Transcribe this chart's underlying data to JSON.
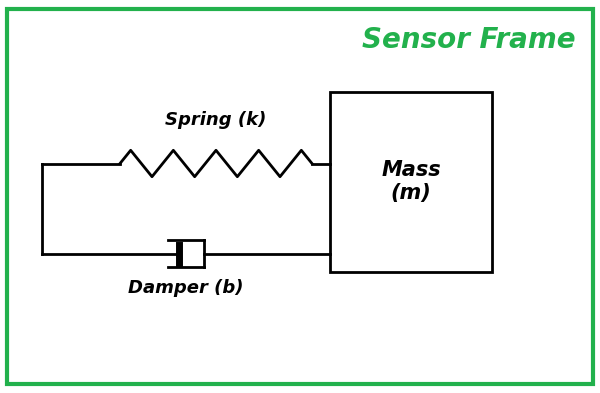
{
  "title": "Sensor Frame",
  "title_color": "#22b14c",
  "title_fontsize": 20,
  "background_color": "#ffffff",
  "border_color": "#22b14c",
  "border_linewidth": 3,
  "spring_label": "Spring (k)",
  "damper_label": "Damper (b)",
  "mass_label": "Mass\n(m)",
  "label_fontsize": 13,
  "mass_fontsize": 15,
  "line_color": "#000000",
  "line_width": 2.0,
  "spring_coils": 9,
  "spring_amplitude": 0.22,
  "fig_width": 6.0,
  "fig_height": 3.93
}
